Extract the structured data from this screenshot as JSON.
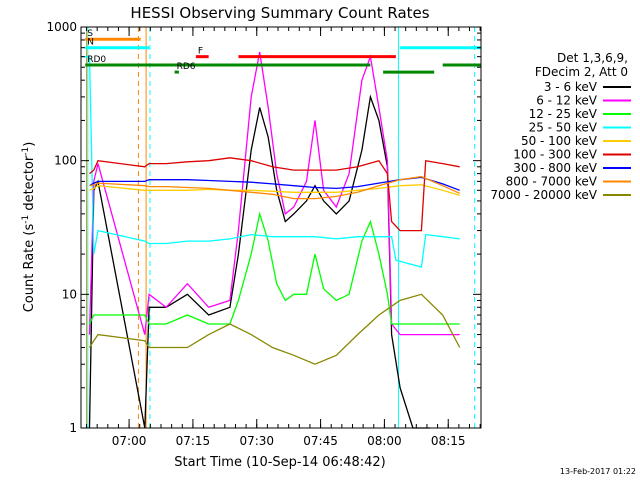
{
  "chart_data": {
    "type": "line",
    "title": "HESSI Observing Summary Count Rates",
    "xlabel": "Start Time (10-Sep-14 06:48:42)",
    "ylabel_main": "Count Rate (s",
    "ylabel_sup1": "-1",
    "ylabel_mid": " detector",
    "ylabel_sup2": "-1",
    "ylabel_end": ")",
    "y_scale": "log",
    "ylim": [
      1,
      1000
    ],
    "xlim_minutes": [
      0,
      94
    ],
    "y_ticks": [
      {
        "label": "1",
        "value": 1
      },
      {
        "label": "10",
        "value": 10
      },
      {
        "label": "100",
        "value": 100
      },
      {
        "label": "1000",
        "value": 1000
      }
    ],
    "x_ticks": [
      {
        "label": "07:00",
        "minute": 11.3
      },
      {
        "label": "07:15",
        "minute": 26.3
      },
      {
        "label": "07:30",
        "minute": 41.3
      },
      {
        "label": "07:45",
        "minute": 56.3
      },
      {
        "label": "08:00",
        "minute": 71.3
      },
      {
        "label": "08:15",
        "minute": 86.3
      }
    ],
    "legend_header": [
      "Det 1,3,6,9,",
      "FDecim 2, Att 0"
    ],
    "series": [
      {
        "name": "3 - 6 keV",
        "color": "#000000",
        "points": [
          [
            2,
            1
          ],
          [
            3,
            60
          ],
          [
            4,
            70
          ],
          [
            15,
            1
          ],
          [
            16,
            8
          ],
          [
            20,
            8
          ],
          [
            25,
            10
          ],
          [
            30,
            7
          ],
          [
            35,
            8
          ],
          [
            37,
            20
          ],
          [
            40,
            120
          ],
          [
            42,
            250
          ],
          [
            44,
            150
          ],
          [
            46,
            60
          ],
          [
            48,
            35
          ],
          [
            50,
            40
          ],
          [
            53,
            50
          ],
          [
            55,
            65
          ],
          [
            57,
            50
          ],
          [
            60,
            40
          ],
          [
            63,
            50
          ],
          [
            66,
            120
          ],
          [
            68,
            300
          ],
          [
            70,
            200
          ],
          [
            72,
            90
          ],
          [
            73,
            5
          ],
          [
            75,
            2
          ],
          [
            78,
            1
          ],
          [
            82,
            1
          ]
        ]
      },
      {
        "name": "6 - 12 keV",
        "color": "#ff00ff",
        "points": [
          [
            2,
            5
          ],
          [
            3,
            70
          ],
          [
            4,
            95
          ],
          [
            15,
            5
          ],
          [
            16,
            10
          ],
          [
            20,
            8
          ],
          [
            25,
            12
          ],
          [
            30,
            8
          ],
          [
            35,
            9
          ],
          [
            37,
            30
          ],
          [
            40,
            300
          ],
          [
            42,
            650
          ],
          [
            44,
            250
          ],
          [
            46,
            80
          ],
          [
            48,
            40
          ],
          [
            50,
            45
          ],
          [
            53,
            70
          ],
          [
            55,
            200
          ],
          [
            57,
            60
          ],
          [
            60,
            45
          ],
          [
            63,
            80
          ],
          [
            66,
            400
          ],
          [
            68,
            600
          ],
          [
            70,
            250
          ],
          [
            72,
            100
          ],
          [
            73,
            6
          ],
          [
            75,
            5
          ],
          [
            80,
            5
          ],
          [
            85,
            5
          ],
          [
            89,
            5
          ]
        ]
      },
      {
        "name": "12 - 25 keV",
        "color": "#00ff00",
        "points": [
          [
            2,
            6
          ],
          [
            3,
            7
          ],
          [
            4,
            7
          ],
          [
            15,
            7
          ],
          [
            16,
            6
          ],
          [
            20,
            6
          ],
          [
            25,
            7
          ],
          [
            30,
            6
          ],
          [
            35,
            6
          ],
          [
            37,
            9
          ],
          [
            40,
            20
          ],
          [
            42,
            40
          ],
          [
            44,
            25
          ],
          [
            46,
            12
          ],
          [
            48,
            9
          ],
          [
            50,
            10
          ],
          [
            53,
            10
          ],
          [
            55,
            20
          ],
          [
            57,
            11
          ],
          [
            60,
            9
          ],
          [
            63,
            10
          ],
          [
            66,
            25
          ],
          [
            68,
            35
          ],
          [
            70,
            20
          ],
          [
            72,
            10
          ],
          [
            73,
            6
          ],
          [
            76,
            6
          ],
          [
            80,
            6
          ],
          [
            85,
            6
          ],
          [
            89,
            6
          ]
        ]
      },
      {
        "name": "25 - 50 keV",
        "color": "#00ffff",
        "points": [
          [
            0,
            600
          ],
          [
            2,
            600
          ],
          [
            3,
            20
          ],
          [
            4,
            30
          ],
          [
            15,
            25
          ],
          [
            16,
            24
          ],
          [
            20,
            24
          ],
          [
            25,
            25
          ],
          [
            30,
            25
          ],
          [
            35,
            26
          ],
          [
            40,
            28
          ],
          [
            45,
            27
          ],
          [
            50,
            27
          ],
          [
            55,
            27
          ],
          [
            60,
            26
          ],
          [
            65,
            27
          ],
          [
            70,
            27
          ],
          [
            73,
            27
          ],
          [
            74,
            18
          ],
          [
            80,
            16
          ],
          [
            81,
            28
          ],
          [
            85,
            27
          ],
          [
            89,
            26
          ]
        ]
      },
      {
        "name": "50 - 100 keV",
        "color": "#ffcc00",
        "points": [
          [
            2,
            60
          ],
          [
            3,
            62
          ],
          [
            4,
            65
          ],
          [
            15,
            60
          ],
          [
            16,
            60
          ],
          [
            20,
            60
          ],
          [
            25,
            60
          ],
          [
            30,
            61
          ],
          [
            35,
            60
          ],
          [
            40,
            60
          ],
          [
            45,
            59
          ],
          [
            50,
            58
          ],
          [
            55,
            58
          ],
          [
            60,
            58
          ],
          [
            65,
            60
          ],
          [
            70,
            62
          ],
          [
            75,
            65
          ],
          [
            80,
            66
          ],
          [
            85,
            60
          ],
          [
            89,
            55
          ]
        ]
      },
      {
        "name": "100 - 300 keV",
        "color": "#dd0000",
        "points": [
          [
            2,
            80
          ],
          [
            3,
            85
          ],
          [
            4,
            100
          ],
          [
            15,
            90
          ],
          [
            16,
            95
          ],
          [
            20,
            95
          ],
          [
            25,
            98
          ],
          [
            30,
            100
          ],
          [
            35,
            105
          ],
          [
            40,
            100
          ],
          [
            45,
            90
          ],
          [
            50,
            85
          ],
          [
            55,
            85
          ],
          [
            60,
            85
          ],
          [
            65,
            90
          ],
          [
            70,
            100
          ],
          [
            72,
            80
          ],
          [
            73,
            35
          ],
          [
            75,
            30
          ],
          [
            80,
            30
          ],
          [
            81,
            100
          ],
          [
            85,
            95
          ],
          [
            89,
            90
          ]
        ]
      },
      {
        "name": "300 - 800 keV",
        "color": "#0000ff",
        "points": [
          [
            2,
            65
          ],
          [
            3,
            68
          ],
          [
            4,
            70
          ],
          [
            15,
            70
          ],
          [
            16,
            72
          ],
          [
            20,
            72
          ],
          [
            25,
            72
          ],
          [
            30,
            71
          ],
          [
            35,
            70
          ],
          [
            40,
            69
          ],
          [
            45,
            67
          ],
          [
            50,
            65
          ],
          [
            55,
            63
          ],
          [
            60,
            62
          ],
          [
            65,
            64
          ],
          [
            70,
            68
          ],
          [
            75,
            72
          ],
          [
            80,
            75
          ],
          [
            85,
            67
          ],
          [
            89,
            60
          ]
        ]
      },
      {
        "name": "800 - 7000 keV",
        "color": "#ff8800",
        "points": [
          [
            2,
            65
          ],
          [
            3,
            66
          ],
          [
            4,
            68
          ],
          [
            15,
            65
          ],
          [
            16,
            64
          ],
          [
            20,
            64
          ],
          [
            25,
            63
          ],
          [
            30,
            62
          ],
          [
            35,
            60
          ],
          [
            40,
            58
          ],
          [
            45,
            56
          ],
          [
            50,
            52
          ],
          [
            55,
            52
          ],
          [
            60,
            54
          ],
          [
            65,
            58
          ],
          [
            70,
            65
          ],
          [
            75,
            72
          ],
          [
            80,
            76
          ],
          [
            85,
            65
          ],
          [
            89,
            57
          ]
        ]
      },
      {
        "name": "7000 - 20000 keV",
        "color": "#888800",
        "points": [
          [
            2,
            4
          ],
          [
            3,
            4.5
          ],
          [
            4,
            5
          ],
          [
            15,
            4.5
          ],
          [
            16,
            4
          ],
          [
            20,
            4
          ],
          [
            25,
            4
          ],
          [
            30,
            5
          ],
          [
            35,
            6
          ],
          [
            40,
            5
          ],
          [
            45,
            4
          ],
          [
            50,
            3.5
          ],
          [
            55,
            3
          ],
          [
            60,
            3.5
          ],
          [
            65,
            5
          ],
          [
            70,
            7
          ],
          [
            75,
            9
          ],
          [
            80,
            10
          ],
          [
            85,
            7
          ],
          [
            89,
            4
          ]
        ]
      }
    ],
    "flags": [
      {
        "label": "S",
        "color": "#ff8800",
        "start": 1,
        "end": 14,
        "y": 810
      },
      {
        "label": "N",
        "color": "#00ffff",
        "start": 1,
        "end": 16,
        "y": 700
      },
      {
        "label": "F",
        "color": "#ff0000",
        "start": 27,
        "end": 30,
        "y": 600
      },
      {
        "label": "",
        "color": "#ff0000",
        "start": 37,
        "end": 74,
        "y": 600
      },
      {
        "label": "",
        "color": "#00ffff",
        "start": 75,
        "end": 94,
        "y": 700
      },
      {
        "label": "RD0",
        "color": "#008800",
        "start": 1,
        "end": 68,
        "y": 520
      },
      {
        "label": "",
        "color": "#008800",
        "start": 71,
        "end": 83,
        "y": 460
      },
      {
        "label": "",
        "color": "#008800",
        "start": 85,
        "end": 94,
        "y": 520
      },
      {
        "label": "RD6",
        "color": "#008800",
        "start": 22,
        "end": 23,
        "y": 460
      }
    ],
    "vlines": [
      {
        "minute": 1.3,
        "color": "#ff8800",
        "style": "solid"
      },
      {
        "minute": 1.6,
        "color": "#00ffff",
        "style": "solid"
      },
      {
        "minute": 13.5,
        "color": "#ff8800",
        "style": "dashed"
      },
      {
        "minute": 15.3,
        "color": "#ff8800",
        "style": "solid"
      },
      {
        "minute": 16.2,
        "color": "#00ffff",
        "style": "dashed"
      },
      {
        "minute": 74.6,
        "color": "#00ffff",
        "style": "solid"
      },
      {
        "minute": 92.5,
        "color": "#00ffff",
        "style": "dashed"
      }
    ],
    "timestamp": "13-Feb-2017 01:22"
  }
}
